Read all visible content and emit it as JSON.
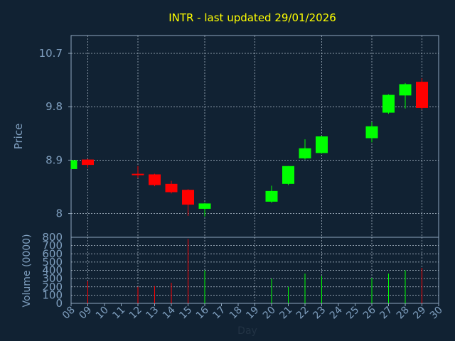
{
  "theme": {
    "background": "#112233",
    "title_color": "#ffff00",
    "axis_text_color": "#7f9fbf",
    "frame_color": "#8fa7bf",
    "grid_color": "#b8c6d4",
    "up_color": "#00ff00",
    "down_color": "#ff0000"
  },
  "chart_data": [
    {
      "type": "candlestick",
      "title": "INTR - last updated 29/01/2026",
      "ylabel": "Price",
      "ylim": [
        7.6,
        11.0
      ],
      "yticks": [
        {
          "value": 8,
          "label": "8"
        },
        {
          "value": 8.9,
          "label": "8.9"
        },
        {
          "value": 9.8,
          "label": "9.8"
        },
        {
          "value": 10.7,
          "label": "10.7"
        }
      ],
      "grid": true,
      "candles": [
        {
          "day": "08",
          "open": 8.75,
          "close": 8.9,
          "high": 8.9,
          "low": 8.75
        },
        {
          "day": "09",
          "open": 8.91,
          "close": 8.82,
          "high": 8.92,
          "low": 8.77
        },
        {
          "day": "12",
          "open": 8.67,
          "close": 8.65,
          "high": 8.8,
          "low": 8.6
        },
        {
          "day": "13",
          "open": 8.66,
          "close": 8.48,
          "high": 8.67,
          "low": 8.46
        },
        {
          "day": "14",
          "open": 8.5,
          "close": 8.36,
          "high": 8.55,
          "low": 8.34
        },
        {
          "day": "15",
          "open": 8.4,
          "close": 8.15,
          "high": 8.41,
          "low": 7.96
        },
        {
          "day": "16",
          "open": 8.08,
          "close": 8.17,
          "high": 8.18,
          "low": 7.95
        },
        {
          "day": "20",
          "open": 8.2,
          "close": 8.38,
          "high": 8.47,
          "low": 8.18
        },
        {
          "day": "21",
          "open": 8.5,
          "close": 8.8,
          "high": 8.8,
          "low": 8.48
        },
        {
          "day": "22",
          "open": 8.93,
          "close": 9.1,
          "high": 9.25,
          "low": 8.91
        },
        {
          "day": "23",
          "open": 9.02,
          "close": 9.3,
          "high": 9.31,
          "low": 9.01
        },
        {
          "day": "26",
          "open": 9.27,
          "close": 9.47,
          "high": 9.54,
          "low": 9.2
        },
        {
          "day": "27",
          "open": 9.7,
          "close": 10.0,
          "high": 10.01,
          "low": 9.68
        },
        {
          "day": "28",
          "open": 9.99,
          "close": 10.18,
          "high": 10.2,
          "low": 9.77
        },
        {
          "day": "29",
          "open": 10.22,
          "close": 9.78,
          "high": 10.28,
          "low": 9.75
        }
      ]
    },
    {
      "type": "bar",
      "ylabel": "Volume (0000)",
      "xlabel": "Day",
      "ylim": [
        0,
        800
      ],
      "yticks": [
        0,
        100,
        200,
        300,
        400,
        500,
        600,
        700,
        800
      ],
      "categories": [
        "08",
        "09",
        "10",
        "11",
        "12",
        "13",
        "14",
        "15",
        "16",
        "17",
        "18",
        "19",
        "20",
        "21",
        "22",
        "23",
        "24",
        "25",
        "26",
        "27",
        "28",
        "29",
        "30"
      ],
      "grid": true,
      "bars": [
        {
          "day": "09",
          "value": 270,
          "direction": "down"
        },
        {
          "day": "12",
          "value": 200,
          "direction": "down"
        },
        {
          "day": "13",
          "value": 210,
          "direction": "down"
        },
        {
          "day": "14",
          "value": 250,
          "direction": "down"
        },
        {
          "day": "15",
          "value": 780,
          "direction": "down"
        },
        {
          "day": "16",
          "value": 400,
          "direction": "up"
        },
        {
          "day": "20",
          "value": 300,
          "direction": "up"
        },
        {
          "day": "21",
          "value": 200,
          "direction": "up"
        },
        {
          "day": "22",
          "value": 360,
          "direction": "up"
        },
        {
          "day": "23",
          "value": 330,
          "direction": "up"
        },
        {
          "day": "26",
          "value": 310,
          "direction": "up"
        },
        {
          "day": "27",
          "value": 360,
          "direction": "up"
        },
        {
          "day": "28",
          "value": 400,
          "direction": "up"
        },
        {
          "day": "29",
          "value": 430,
          "direction": "down"
        }
      ]
    }
  ]
}
